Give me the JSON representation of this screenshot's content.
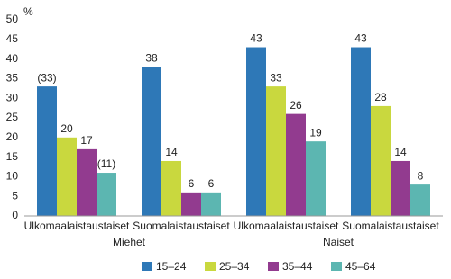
{
  "chart_data": {
    "type": "bar",
    "y_label": "%",
    "categories": [
      "Ulkomaalaistaustaiset",
      "Suomalaistaustaiset",
      "Ulkomaalaistaustaiset",
      "Suomalaistaustaiset"
    ],
    "group_labels": [
      "Miehet",
      "Naiset"
    ],
    "series": [
      {
        "name": "15–24",
        "color": "#2e78b7",
        "values": [
          33,
          38,
          43,
          43
        ],
        "value_labels": [
          "(33)",
          "38",
          "43",
          "43"
        ]
      },
      {
        "name": "25–34",
        "color": "#c9d83e",
        "values": [
          20,
          14,
          33,
          28
        ]
      },
      {
        "name": "35–44",
        "color": "#923b8f",
        "values": [
          17,
          6,
          26,
          14
        ]
      },
      {
        "name": "45–64",
        "color": "#5cb6b1",
        "values": [
          11,
          6,
          19,
          8
        ],
        "value_labels": [
          "(11)",
          "6",
          "19",
          "8"
        ]
      }
    ],
    "ylim": [
      0,
      50
    ],
    "yticks": [
      0,
      5,
      10,
      15,
      20,
      25,
      30,
      35,
      40,
      45,
      50
    ],
    "grid": false
  }
}
